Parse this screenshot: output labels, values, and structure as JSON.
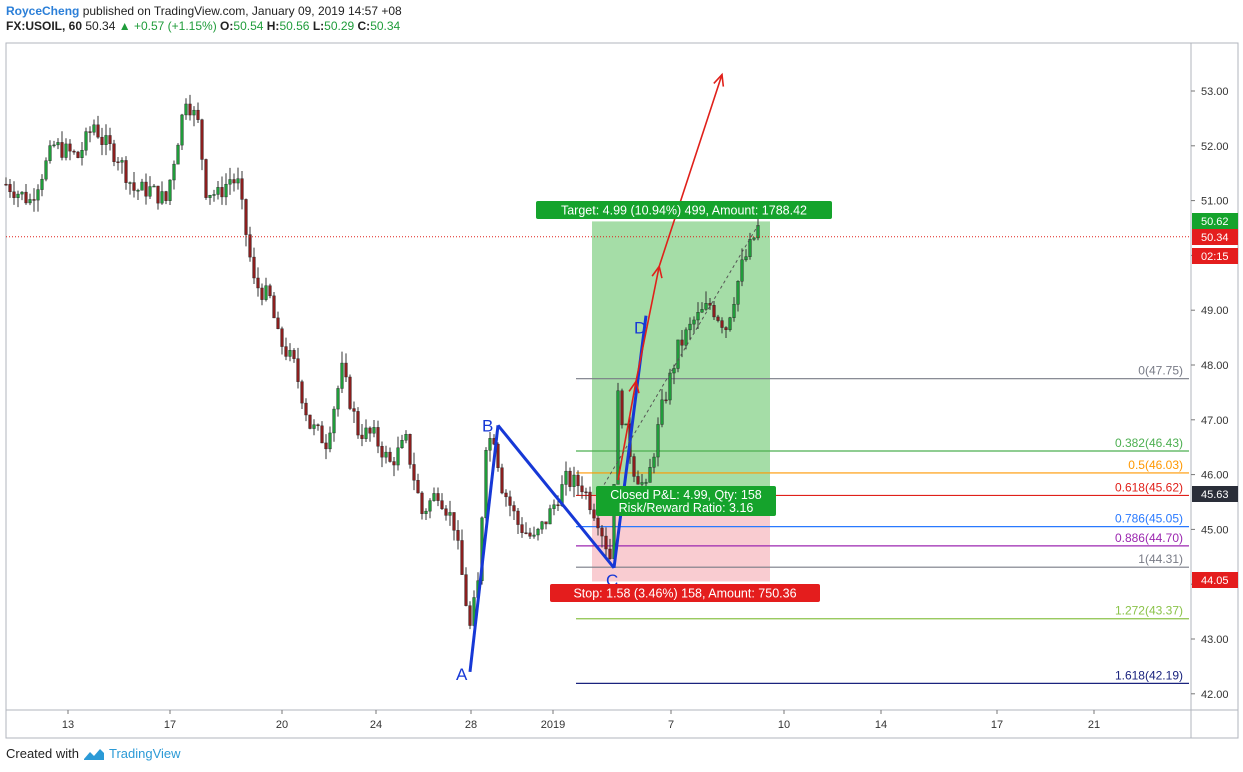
{
  "header": {
    "author": "RoyceCheng",
    "published": "published on TradingView.com, January 09, 2019 14:57 +08",
    "symbol": "FX:USOIL, 60",
    "last": "50.34",
    "arrow": "▲",
    "change": "+0.57 (+1.15%)",
    "o_label": "O:",
    "o_value": "50.54",
    "h_label": "H:",
    "h_value": "50.56",
    "l_label": "L:",
    "l_value": "50.29",
    "c_label": "C:",
    "c_value": "50.34"
  },
  "footer": {
    "created_with": "Created with",
    "brand": "TradingView"
  },
  "colors": {
    "up": "#1f9c3a",
    "down": "#8b1e1e",
    "wick": "#333333",
    "target_zone": "#4cbb4f",
    "stop_zone": "#f7b6bd",
    "pattern": "#1638d6",
    "arrow": "#e0201a",
    "price_line": "#e0201a"
  },
  "chart_data": {
    "type": "candlestick",
    "ylim": [
      41.8,
      53.6
    ],
    "y_ticks": [
      "53.00",
      "52.00",
      "51.00",
      "50.00",
      "49.00",
      "48.00",
      "47.00",
      "46.00",
      "45.00",
      "44.00",
      "43.00",
      "42.00"
    ],
    "x_ticks": [
      "13",
      "17",
      "20",
      "24",
      "28",
      "2019",
      "7",
      "10",
      "14",
      "17",
      "21"
    ],
    "price_path": [
      [
        0,
        51.3
      ],
      [
        6,
        51.0
      ],
      [
        12,
        52.0
      ],
      [
        18,
        51.8
      ],
      [
        22,
        52.4
      ],
      [
        24,
        52.1
      ],
      [
        28,
        51.8
      ],
      [
        32,
        51.2
      ],
      [
        36,
        51.2
      ],
      [
        40,
        51.0
      ],
      [
        45,
        52.9
      ],
      [
        48,
        52.4
      ],
      [
        50,
        51.2
      ],
      [
        53,
        51.1
      ],
      [
        56,
        51.4
      ],
      [
        58,
        51.3
      ],
      [
        62,
        49.5
      ],
      [
        66,
        49.2
      ],
      [
        68,
        48.5
      ],
      [
        72,
        48.0
      ],
      [
        76,
        46.9
      ],
      [
        80,
        46.6
      ],
      [
        84,
        47.9
      ],
      [
        88,
        46.8
      ],
      [
        92,
        46.7
      ],
      [
        96,
        46.2
      ],
      [
        100,
        46.6
      ],
      [
        104,
        45.3
      ],
      [
        108,
        45.7
      ],
      [
        112,
        45.1
      ],
      [
        116,
        43.2
      ],
      [
        118,
        44.0
      ],
      [
        120,
        46.6
      ],
      [
        122,
        46.7
      ],
      [
        124,
        45.8
      ],
      [
        128,
        45.1
      ],
      [
        132,
        44.8
      ],
      [
        136,
        45.3
      ],
      [
        140,
        45.9
      ],
      [
        144,
        45.8
      ],
      [
        148,
        45.2
      ],
      [
        151,
        44.5
      ],
      [
        153,
        47.4
      ],
      [
        157,
        46.1
      ],
      [
        160,
        45.7
      ],
      [
        164,
        47.2
      ],
      [
        168,
        48.3
      ],
      [
        172,
        48.8
      ],
      [
        176,
        49.1
      ],
      [
        180,
        48.7
      ],
      [
        184,
        49.8
      ],
      [
        188,
        50.5
      ]
    ],
    "fibonacci": [
      {
        "level": "0",
        "price": 47.75,
        "label": "0(47.75)",
        "color": "#787b86"
      },
      {
        "level": "0.382",
        "price": 46.43,
        "label": "0.382(46.43)",
        "color": "#4caf50"
      },
      {
        "level": "0.5",
        "price": 46.03,
        "label": "0.5(46.03)",
        "color": "#ff9800"
      },
      {
        "level": "0.618",
        "price": 45.62,
        "label": "0.618(45.62)",
        "color": "#e0201a"
      },
      {
        "level": "0.786",
        "price": 45.05,
        "label": "0.786(45.05)",
        "color": "#2979ff"
      },
      {
        "level": "0.886",
        "price": 44.7,
        "label": "0.886(44.70)",
        "color": "#9c27b0"
      },
      {
        "level": "1",
        "price": 44.31,
        "label": "1(44.31)",
        "color": "#787b86"
      },
      {
        "level": "1.272",
        "price": 43.37,
        "label": "1.272(43.37)",
        "color": "#8bc34a"
      },
      {
        "level": "1.618",
        "price": 42.19,
        "label": "1.618(42.19)",
        "color": "#1a237e"
      }
    ],
    "pattern_points": [
      {
        "name": "A",
        "t": 116,
        "price": 42.4
      },
      {
        "name": "B",
        "t": 123,
        "price": 46.9
      },
      {
        "name": "C",
        "t": 152,
        "price": 44.3
      },
      {
        "name": "D",
        "t": 160,
        "price": 48.9
      }
    ],
    "position": {
      "entry": 45.63,
      "target": 50.62,
      "stop": 44.05,
      "target_label": "Target: 4.99 (10.94%) 499, Amount: 1788.42",
      "stop_label": "Stop: 1.58 (3.46%) 158, Amount: 750.36",
      "pnl_label": "Closed P&L: 4.99, Qty: 158",
      "rr_label": "Risk/Reward Ratio: 3.16"
    },
    "price_badges": {
      "target": "50.62",
      "current": "50.34",
      "countdown": "02:15",
      "entry": "45.63",
      "stop": "44.05"
    }
  }
}
